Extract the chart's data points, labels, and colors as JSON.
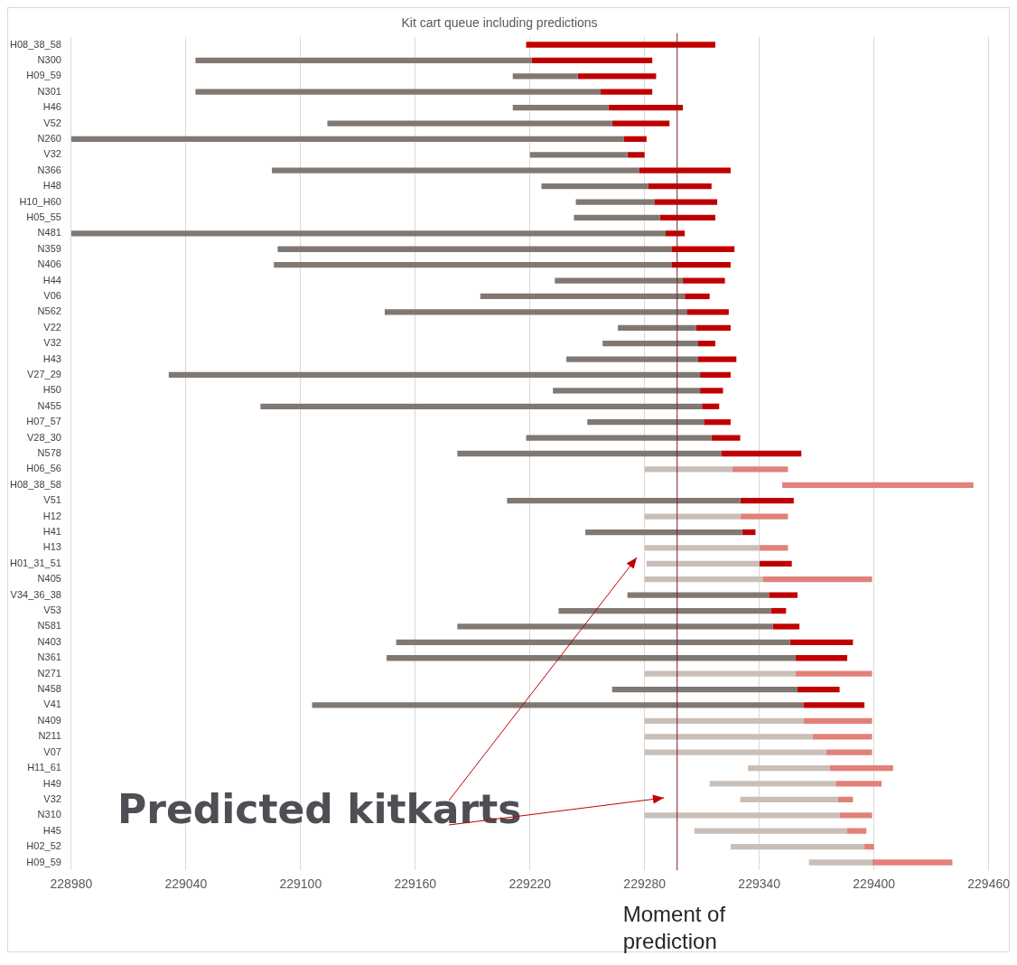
{
  "chart_data": {
    "type": "bar",
    "orientation": "horizontal",
    "title": "Kit cart queue including predictions",
    "categories": [
      "H08_38_58",
      "N300",
      "H09_59",
      "N301",
      "H46",
      "V52",
      "N260",
      "V32",
      "N366",
      "H48",
      "H10_H60",
      "H05_55",
      "N481",
      "N359",
      "N406",
      "H44",
      "V06",
      "N562",
      "V22",
      "V32",
      "H43",
      "V27_29",
      "H50",
      "N455",
      "H07_57",
      "V28_30",
      "N578",
      "H06_56",
      "H08_38_58",
      "V51",
      "H12",
      "H41",
      "H13",
      "H01_31_51",
      "N405",
      "V34_36_38",
      "V53",
      "N581",
      "N403",
      "N361",
      "N271",
      "N458",
      "V41",
      "N409",
      "N211",
      "V07",
      "H11_61",
      "H49",
      "V32",
      "N310",
      "H45",
      "H02_52",
      "H09_59"
    ],
    "series": [
      {
        "base": [
          null,
          229045,
          229211,
          229045,
          229211,
          229114,
          228980,
          229220,
          229085,
          229226,
          229244,
          229243,
          228980,
          229088,
          229086,
          229233,
          229194,
          229144,
          229266,
          229258,
          229239,
          229031,
          229232,
          229079,
          229250,
          229218,
          229182,
          229280,
          null,
          229208,
          229280,
          229249,
          229280,
          229281,
          229280,
          229271,
          229235,
          229182,
          229150,
          229145,
          229280,
          229263,
          229106,
          229280,
          229280,
          229280,
          229334,
          229314,
          229330,
          229280,
          229306,
          229325,
          229366
        ],
        "values": [
          null,
          176,
          34,
          212,
          50,
          149,
          289,
          51,
          192,
          56,
          41,
          45,
          311,
          206,
          208,
          67,
          107,
          158,
          41,
          50,
          69,
          278,
          77,
          231,
          61,
          97,
          138,
          46,
          null,
          122,
          50,
          82,
          60,
          59,
          62,
          74,
          111,
          165,
          206,
          214,
          79,
          97,
          257,
          83,
          88,
          95,
          43,
          66,
          51,
          102,
          80,
          70,
          33
        ],
        "colors": [
          "#807873",
          "#807873",
          "#807873",
          "#807873",
          "#807873",
          "#807873",
          "#807873",
          "#807873",
          "#807873",
          "#807873",
          "#807873",
          "#807873",
          "#807873",
          "#807873",
          "#807873",
          "#807873",
          "#807873",
          "#807873",
          "#807873",
          "#807873",
          "#807873",
          "#807873",
          "#807873",
          "#807873",
          "#807873",
          "#807873",
          "#807873",
          "#c9bfb9",
          "#c9bfb9",
          "#807873",
          "#c9bfb9",
          "#807873",
          "#c9bfb9",
          "#c9bfb9",
          "#c9bfb9",
          "#807873",
          "#807873",
          "#807873",
          "#807873",
          "#807873",
          "#c9bfb9",
          "#807873",
          "#807873",
          "#c9bfb9",
          "#c9bfb9",
          "#c9bfb9",
          "#c9bfb9",
          "#c9bfb9",
          "#c9bfb9",
          "#c9bfb9",
          "#c9bfb9",
          "#c9bfb9",
          "#c9bfb9"
        ]
      },
      {
        "base": [
          229218,
          229221,
          229245,
          229257,
          229261,
          229263,
          229269,
          229271,
          229277,
          229282,
          229285,
          229288,
          229291,
          229294,
          229294,
          229300,
          229301,
          229302,
          229307,
          229308,
          229308,
          229309,
          229309,
          229310,
          229311,
          229315,
          229320,
          229326,
          229352,
          229330,
          229330,
          229331,
          229340,
          229340,
          229342,
          229345,
          229346,
          229347,
          229356,
          229359,
          229359,
          229360,
          229363,
          229363,
          229368,
          229375,
          229377,
          229380,
          229381,
          229382,
          229386,
          229395,
          229399
        ],
        "values": [
          99,
          63,
          41,
          27,
          39,
          30,
          12,
          9,
          48,
          33,
          33,
          29,
          10,
          33,
          31,
          22,
          13,
          22,
          18,
          9,
          20,
          16,
          12,
          9,
          14,
          15,
          42,
          29,
          100,
          28,
          25,
          7,
          15,
          17,
          57,
          15,
          8,
          14,
          33,
          27,
          40,
          22,
          32,
          36,
          31,
          24,
          33,
          24,
          8,
          17,
          10,
          5,
          42
        ],
        "colors": [
          "#c00000",
          "#c00000",
          "#c00000",
          "#c00000",
          "#c00000",
          "#c00000",
          "#c00000",
          "#c00000",
          "#c00000",
          "#c00000",
          "#c00000",
          "#c00000",
          "#c00000",
          "#c00000",
          "#c00000",
          "#c00000",
          "#c00000",
          "#c00000",
          "#c00000",
          "#c00000",
          "#c00000",
          "#c00000",
          "#c00000",
          "#c00000",
          "#c00000",
          "#c00000",
          "#c00000",
          "#e2807a",
          "#e2807a",
          "#c00000",
          "#e2807a",
          "#c00000",
          "#e2807a",
          "#c00000",
          "#e2807a",
          "#c00000",
          "#c00000",
          "#c00000",
          "#c00000",
          "#c00000",
          "#e2807a",
          "#c00000",
          "#c00000",
          "#e2807a",
          "#e2807a",
          "#e2807a",
          "#e2807a",
          "#e2807a",
          "#e2807a",
          "#e2807a",
          "#e2807a",
          "#e2807a",
          "#e2807a"
        ]
      }
    ],
    "xlim": [
      228980,
      229460
    ],
    "xticks": [
      228980,
      229040,
      229100,
      229160,
      229220,
      229280,
      229340,
      229400,
      229460
    ],
    "grid": "x",
    "ref_lines": [
      {
        "axis": "x",
        "value": 229297,
        "label": "Moment of prediction",
        "color": "#7b1f1f"
      }
    ],
    "annotations": [
      "Predicted kitkarts"
    ]
  }
}
